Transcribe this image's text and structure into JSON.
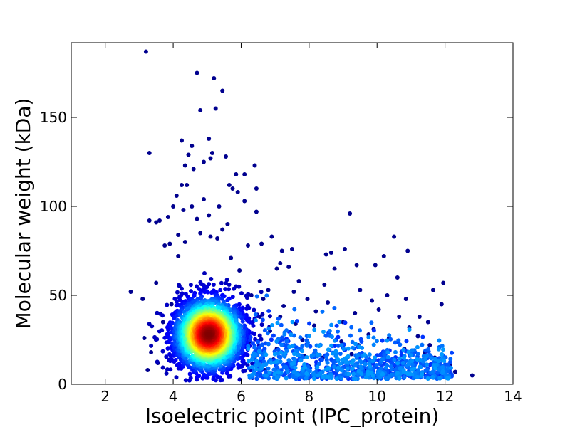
{
  "chart_data": {
    "type": "scatter",
    "title": "",
    "xlabel": "Isoelectric point (IPC_protein)",
    "ylabel": "Molecular weight (kDa)",
    "xlim": [
      1,
      14
    ],
    "ylim": [
      0,
      192
    ],
    "xticks": [
      2,
      4,
      6,
      8,
      10,
      12,
      14
    ],
    "yticks": [
      0,
      50,
      100,
      150
    ],
    "grid": false,
    "colormap": "jet (point density)",
    "colors": {
      "low": "#00008f",
      "mid": "#00ffff",
      "high": "#800000"
    },
    "density_peak": {
      "x": 5.05,
      "y": 28
    },
    "points": [
      [
        3.2,
        187
      ],
      [
        4.7,
        175
      ],
      [
        5.2,
        172
      ],
      [
        5.45,
        165
      ],
      [
        5.25,
        155
      ],
      [
        4.8,
        154
      ],
      [
        4.25,
        137
      ],
      [
        5.05,
        138
      ],
      [
        4.55,
        134
      ],
      [
        3.3,
        130
      ],
      [
        5.15,
        130
      ],
      [
        5.1,
        127
      ],
      [
        5.55,
        128
      ],
      [
        4.9,
        125
      ],
      [
        4.45,
        129
      ],
      [
        6.4,
        123
      ],
      [
        4.35,
        123
      ],
      [
        5.85,
        118
      ],
      [
        6.1,
        118
      ],
      [
        4.6,
        121
      ],
      [
        5.65,
        112
      ],
      [
        4.25,
        112
      ],
      [
        4.4,
        112
      ],
      [
        5.75,
        110
      ],
      [
        6.45,
        110
      ],
      [
        4.1,
        106
      ],
      [
        5.9,
        108
      ],
      [
        4.9,
        104
      ],
      [
        5.35,
        100
      ],
      [
        4.55,
        100
      ],
      [
        6.1,
        103
      ],
      [
        4.0,
        100
      ],
      [
        4.3,
        98
      ],
      [
        6.45,
        97
      ],
      [
        3.6,
        92
      ],
      [
        3.3,
        92
      ],
      [
        3.5,
        91
      ],
      [
        9.2,
        96
      ],
      [
        5.05,
        95
      ],
      [
        4.7,
        93
      ],
      [
        3.85,
        94
      ],
      [
        5.6,
        90
      ],
      [
        5.45,
        87
      ],
      [
        6.9,
        83
      ],
      [
        10.5,
        83
      ],
      [
        4.15,
        84
      ],
      [
        4.8,
        85
      ],
      [
        5.1,
        83
      ],
      [
        5.3,
        82
      ],
      [
        6.6,
        79
      ],
      [
        6.2,
        78
      ],
      [
        3.75,
        78
      ],
      [
        3.9,
        79
      ],
      [
        4.35,
        80
      ],
      [
        7.2,
        75
      ],
      [
        7.5,
        76
      ],
      [
        10.9,
        75
      ],
      [
        9.05,
        76
      ],
      [
        8.65,
        74
      ],
      [
        8.5,
        73
      ],
      [
        5.7,
        71
      ],
      [
        7.15,
        68
      ],
      [
        7.05,
        65
      ],
      [
        7.4,
        66
      ],
      [
        10.2,
        72
      ],
      [
        9.95,
        67
      ],
      [
        8.75,
        65
      ],
      [
        9.4,
        67
      ],
      [
        4.15,
        72
      ],
      [
        3.5,
        57
      ],
      [
        11.95,
        57
      ],
      [
        10.6,
        60
      ],
      [
        2.75,
        52
      ],
      [
        3.1,
        48
      ],
      [
        11.65,
        53
      ],
      [
        11.9,
        45
      ],
      [
        10.3,
        50
      ],
      [
        10.85,
        48
      ],
      [
        9.85,
        47
      ],
      [
        9.5,
        53
      ],
      [
        8.45,
        56
      ],
      [
        7.7,
        58
      ],
      [
        7.55,
        52
      ],
      [
        7.95,
        48
      ],
      [
        6.8,
        53
      ],
      [
        6.3,
        50
      ],
      [
        6.55,
        58
      ],
      [
        5.95,
        64
      ],
      [
        11.25,
        38
      ],
      [
        11.5,
        35
      ],
      [
        12.8,
        5
      ],
      [
        12.3,
        7
      ],
      [
        12.1,
        4
      ],
      [
        12.15,
        11
      ],
      [
        11.85,
        8
      ],
      [
        11.7,
        15
      ],
      [
        11.55,
        22
      ],
      [
        11.4,
        18
      ],
      [
        11.2,
        27
      ],
      [
        11.05,
        12
      ],
      [
        10.8,
        20
      ],
      [
        10.55,
        9
      ],
      [
        10.35,
        26
      ],
      [
        10.15,
        14
      ],
      [
        9.9,
        31
      ],
      [
        9.65,
        8
      ],
      [
        9.45,
        22
      ],
      [
        9.25,
        17
      ],
      [
        9.0,
        35
      ],
      [
        8.8,
        6
      ],
      [
        8.6,
        28
      ],
      [
        8.4,
        15
      ],
      [
        8.2,
        41
      ],
      [
        8.0,
        10
      ],
      [
        7.8,
        25
      ],
      [
        7.6,
        34
      ],
      [
        7.4,
        12
      ],
      [
        7.25,
        44
      ],
      [
        7.05,
        20
      ],
      [
        6.85,
        30
      ],
      [
        6.7,
        8
      ],
      [
        6.55,
        38
      ],
      [
        6.4,
        15
      ],
      [
        6.25,
        24
      ],
      [
        3.15,
        26
      ],
      [
        3.35,
        18
      ],
      [
        3.25,
        8
      ],
      [
        3.55,
        12
      ],
      [
        3.7,
        35
      ],
      [
        3.95,
        45
      ],
      [
        11.35,
        6
      ],
      [
        10.95,
        32
      ],
      [
        10.65,
        38
      ],
      [
        10.05,
        42
      ],
      [
        9.75,
        28
      ],
      [
        9.35,
        40
      ],
      [
        8.95,
        24
      ],
      [
        8.55,
        46
      ],
      [
        8.15,
        33
      ],
      [
        7.85,
        16
      ],
      [
        7.45,
        29
      ],
      [
        7.15,
        38
      ],
      [
        6.95,
        14
      ],
      [
        6.65,
        48
      ]
    ]
  }
}
